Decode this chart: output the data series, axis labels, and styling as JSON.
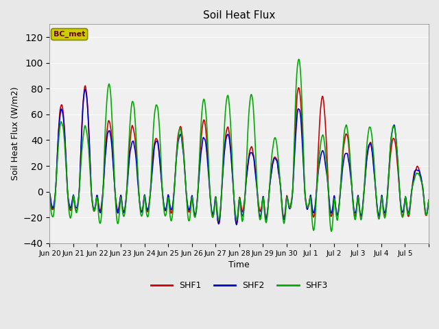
{
  "title": "Soil Heat Flux",
  "ylabel": "Soil Heat Flux (W/m2)",
  "xlabel": "Time",
  "ylim": [
    -40,
    130
  ],
  "yticks": [
    -40,
    -20,
    0,
    20,
    40,
    60,
    80,
    100,
    120
  ],
  "background_color": "#e8e8e8",
  "plot_bg_color": "#f0f0f0",
  "shf1_color": "#cc0000",
  "shf2_color": "#0000cc",
  "shf3_color": "#00aa00",
  "legend_label": "BC_met",
  "legend_box_facecolor": "#cccc00",
  "legend_text_color": "#660000",
  "line_width": 1.2,
  "series_names": [
    "SHF1",
    "SHF2",
    "SHF3"
  ],
  "x_tick_labels": [
    "Jun 20",
    "Jun 21",
    "Jun 22",
    "Jun 23",
    "Jun 24",
    "Jun 25",
    "Jun 26",
    "Jun 27",
    "Jun 28",
    "Jun 29",
    "Jun 30",
    "Jul 1",
    "Jul 2",
    "Jul 3",
    "Jul 4",
    "Jul 5"
  ],
  "n_days": 16,
  "pts_per_day": 48,
  "shf1_peaks": [
    69,
    82,
    55,
    51,
    42,
    52,
    55,
    50,
    35,
    28,
    82,
    74,
    45,
    38,
    42,
    20
  ],
  "shf2_peaks": [
    65,
    80,
    47,
    40,
    40,
    45,
    42,
    45,
    32,
    26,
    65,
    32,
    31,
    37,
    52,
    18
  ],
  "shf3_peaks": [
    55,
    51,
    84,
    70,
    69,
    49,
    72,
    75,
    76,
    41,
    105,
    44,
    52,
    51,
    52,
    15
  ],
  "shf1_night": [
    -15,
    -16,
    -15,
    -16,
    -16,
    -17,
    -20,
    -26,
    -16,
    -21,
    -12,
    -20,
    -20,
    -20,
    -20,
    -20
  ],
  "shf2_night": [
    -13,
    -14,
    -17,
    -17,
    -15,
    -15,
    -18,
    -26,
    -20,
    -22,
    -14,
    -17,
    -18,
    -19,
    -17,
    -18
  ],
  "shf3_night": [
    -21,
    -16,
    -26,
    -20,
    -20,
    -23,
    -21,
    -22,
    -23,
    -25,
    -13,
    -32,
    -22,
    -22,
    -21,
    -19
  ]
}
